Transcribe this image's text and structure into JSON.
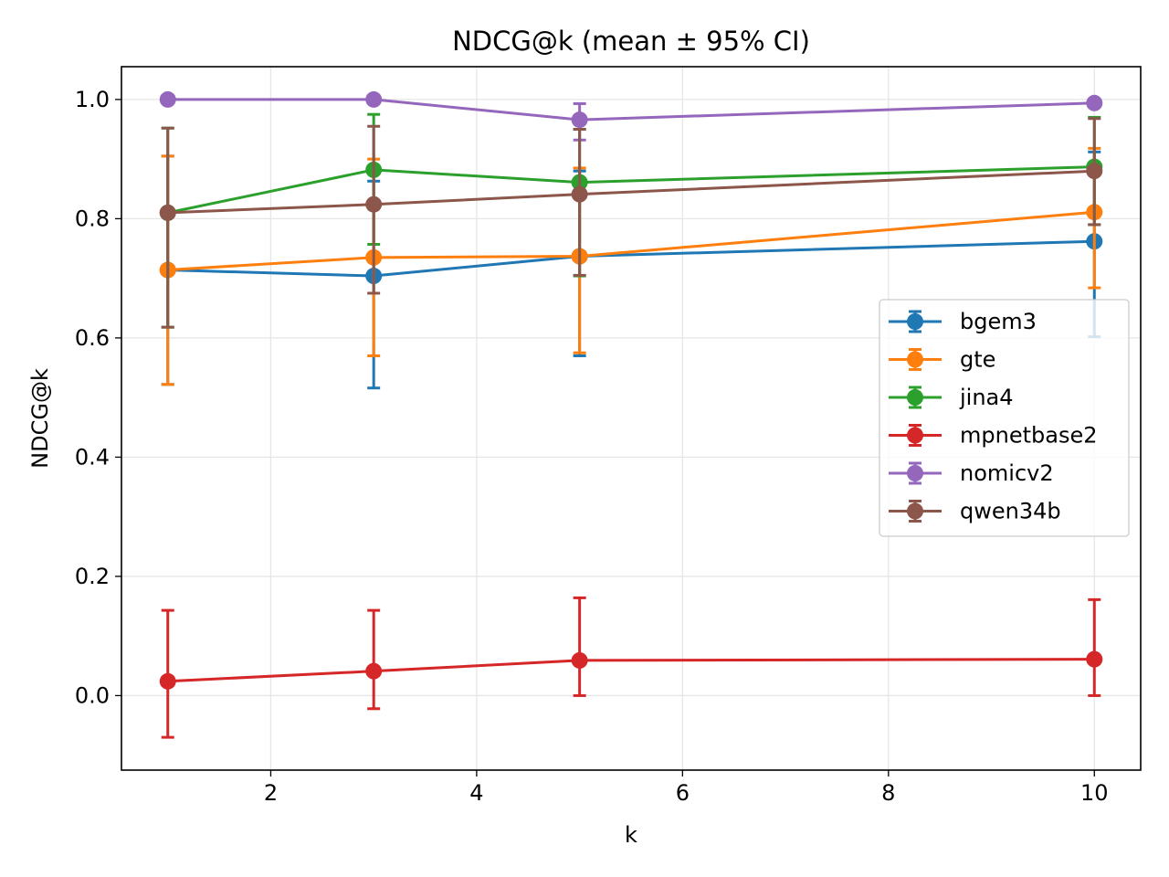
{
  "chart_data": {
    "type": "line",
    "title": "NDCG@k (mean ± 95% CI)",
    "xlabel": "k",
    "ylabel": "NDCG@k",
    "xlim": [
      0.55,
      10.45
    ],
    "ylim": [
      -0.125,
      1.055
    ],
    "xticks": [
      2,
      4,
      6,
      8,
      10
    ],
    "yticks": [
      0.0,
      0.2,
      0.4,
      0.6,
      0.8,
      1.0
    ],
    "xtick_labels": [
      "2",
      "4",
      "6",
      "8",
      "10"
    ],
    "ytick_labels": [
      "0.0",
      "0.2",
      "0.4",
      "0.6",
      "0.8",
      "1.0"
    ],
    "grid": true,
    "legend_position": "center-right",
    "x": [
      1,
      3,
      5,
      10
    ],
    "series": [
      {
        "name": "bgem3",
        "color": "#1f77b4",
        "values": [
          0.714,
          0.704,
          0.737,
          0.762
        ],
        "err_low": [
          0.522,
          0.516,
          0.57,
          0.602
        ],
        "err_high": [
          0.905,
          0.863,
          0.88,
          0.912
        ]
      },
      {
        "name": "gte",
        "color": "#ff7f0e",
        "values": [
          0.714,
          0.735,
          0.737,
          0.811
        ],
        "err_low": [
          0.522,
          0.57,
          0.575,
          0.684
        ],
        "err_high": [
          0.905,
          0.9,
          0.885,
          0.918
        ]
      },
      {
        "name": "jina4",
        "color": "#2ca02c",
        "values": [
          0.81,
          0.882,
          0.861,
          0.887
        ],
        "err_low": [
          0.618,
          0.757,
          0.704,
          0.79
        ],
        "err_high": [
          0.952,
          0.975,
          0.95,
          0.97
        ]
      },
      {
        "name": "mpnetbase2",
        "color": "#d62728",
        "values": [
          0.024,
          0.041,
          0.059,
          0.061
        ],
        "err_low": [
          -0.07,
          -0.022,
          0.0,
          0.0
        ],
        "err_high": [
          0.143,
          0.143,
          0.164,
          0.161
        ]
      },
      {
        "name": "nomicv2",
        "color": "#9467bd",
        "values": [
          1.0,
          1.0,
          0.966,
          0.994
        ],
        "err_low": [
          1.0,
          1.0,
          0.932,
          0.994
        ],
        "err_high": [
          1.0,
          1.0,
          0.993,
          0.994
        ]
      },
      {
        "name": "qwen34b",
        "color": "#8c564b",
        "values": [
          0.81,
          0.824,
          0.841,
          0.88
        ],
        "err_low": [
          0.618,
          0.675,
          0.705,
          0.79
        ],
        "err_high": [
          0.952,
          0.955,
          0.95,
          0.968
        ]
      }
    ]
  }
}
